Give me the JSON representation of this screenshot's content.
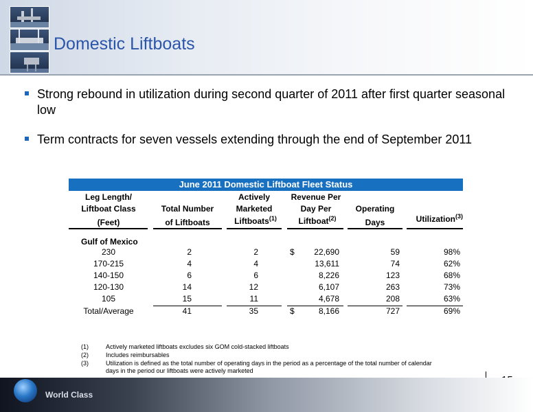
{
  "title": "Domestic Liftboats",
  "bullets": [
    "Strong rebound in utilization during second quarter of 2011 after first quarter seasonal low",
    "Term contracts for seven vessels extending through the end of September 2011"
  ],
  "table": {
    "title": "June 2011 Domestic Liftboat Fleet Status",
    "headers": {
      "col1": [
        "Leg Length/",
        "Liftboat Class",
        "(Feet)"
      ],
      "col2": [
        "Total Number",
        "of Liftboats"
      ],
      "col3": [
        "Actively",
        "Marketed",
        "Liftboats"
      ],
      "col3_sup": "(1)",
      "col4": [
        "Revenue Per",
        "Day Per",
        "Liftboat"
      ],
      "col4_sup": "(2)",
      "col5": [
        "Operating",
        "Days"
      ],
      "col6": "Utilization",
      "col6_sup": "(3)"
    },
    "section": "Gulf of Mexico",
    "currency": "$",
    "rows": [
      {
        "cls": "230",
        "total": "2",
        "marketed": "2",
        "revenue": "22,690",
        "days": "59",
        "util": "98%"
      },
      {
        "cls": "170-215",
        "total": "4",
        "marketed": "4",
        "revenue": "13,611",
        "days": "74",
        "util": "62%"
      },
      {
        "cls": "140-150",
        "total": "6",
        "marketed": "6",
        "revenue": "8,226",
        "days": "123",
        "util": "68%"
      },
      {
        "cls": "120-130",
        "total": "14",
        "marketed": "12",
        "revenue": "6,107",
        "days": "263",
        "util": "73%"
      },
      {
        "cls": "105",
        "total": "15",
        "marketed": "11",
        "revenue": "4,678",
        "days": "208",
        "util": "63%"
      }
    ],
    "total_row": {
      "cls": "Total/Average",
      "total": "41",
      "marketed": "35",
      "revenue": "8,166",
      "days": "727",
      "util": "69%"
    }
  },
  "footnotes": [
    {
      "num": "(1)",
      "text": "Actively marketed liftboats excludes six GOM cold-stacked liftboats"
    },
    {
      "num": "(2)",
      "text": "Includes reimbursables"
    },
    {
      "num": "(3)",
      "text": "Utilization is defined as the total number of operating days in the period as a percentage of the total number of calendar",
      "text2": "days in the period our liftboats were actively marketed"
    }
  ],
  "page_number": "15",
  "footer_text": "World Class"
}
